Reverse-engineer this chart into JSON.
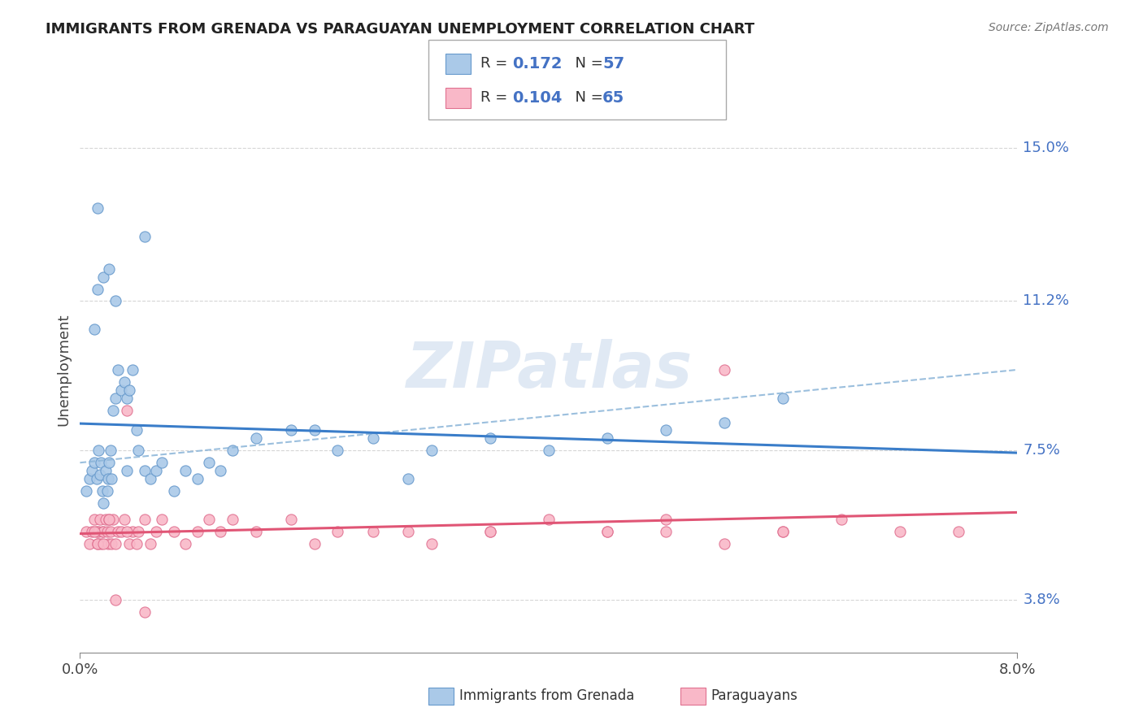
{
  "title": "IMMIGRANTS FROM GRENADA VS PARAGUAYAN UNEMPLOYMENT CORRELATION CHART",
  "source": "Source: ZipAtlas.com",
  "ylabel": "Unemployment",
  "x_range": [
    0.0,
    8.0
  ],
  "y_range": [
    2.5,
    16.5
  ],
  "y_ticks": [
    3.8,
    7.5,
    11.2,
    15.0
  ],
  "y_tick_labels": [
    "3.8%",
    "7.5%",
    "11.2%",
    "15.0%"
  ],
  "x_tick_labels": [
    "0.0%",
    "8.0%"
  ],
  "series1_color": "#aac9e8",
  "series1_edge": "#6699cc",
  "series2_color": "#f9b8c8",
  "series2_edge": "#e07090",
  "trend1_color": "#3a7dc9",
  "trend2_color": "#e05575",
  "dash_color": "#8ab4d8",
  "grid_color": "#cccccc",
  "blue_text_color": "#4472c4",
  "watermark": "ZIPatlas",
  "legend1_r": "0.172",
  "legend1_n": "57",
  "legend2_r": "0.104",
  "legend2_n": "65",
  "legend_label1": "Immigrants from Grenada",
  "legend_label2": "Paraguayans",
  "grenada_x": [
    0.05,
    0.08,
    0.1,
    0.12,
    0.14,
    0.15,
    0.16,
    0.17,
    0.18,
    0.19,
    0.2,
    0.22,
    0.23,
    0.24,
    0.25,
    0.26,
    0.27,
    0.28,
    0.3,
    0.32,
    0.35,
    0.38,
    0.4,
    0.42,
    0.45,
    0.48,
    0.5,
    0.55,
    0.6,
    0.65,
    0.7,
    0.8,
    0.9,
    1.0,
    1.1,
    1.2,
    1.3,
    1.5,
    1.8,
    2.0,
    2.2,
    2.5,
    2.8,
    3.0,
    3.5,
    4.0,
    4.5,
    5.0,
    5.5,
    6.0,
    0.12,
    0.15,
    0.2,
    0.25,
    0.3,
    0.4,
    0.55
  ],
  "grenada_y": [
    6.5,
    6.8,
    7.0,
    7.2,
    6.8,
    13.5,
    7.5,
    6.9,
    7.2,
    6.5,
    6.2,
    7.0,
    6.5,
    6.8,
    7.2,
    7.5,
    6.8,
    8.5,
    8.8,
    9.5,
    9.0,
    9.2,
    8.8,
    9.0,
    9.5,
    8.0,
    7.5,
    7.0,
    6.8,
    7.0,
    7.2,
    6.5,
    7.0,
    6.8,
    7.2,
    7.0,
    7.5,
    7.8,
    8.0,
    8.0,
    7.5,
    7.8,
    6.8,
    7.5,
    7.8,
    7.5,
    7.8,
    8.0,
    8.2,
    8.8,
    10.5,
    11.5,
    11.8,
    12.0,
    11.2,
    7.0,
    12.8
  ],
  "paraguay_x": [
    0.05,
    0.08,
    0.1,
    0.12,
    0.14,
    0.15,
    0.16,
    0.17,
    0.18,
    0.19,
    0.2,
    0.22,
    0.23,
    0.24,
    0.25,
    0.26,
    0.27,
    0.28,
    0.3,
    0.32,
    0.35,
    0.38,
    0.4,
    0.42,
    0.45,
    0.48,
    0.5,
    0.55,
    0.6,
    0.65,
    0.7,
    0.8,
    0.9,
    1.0,
    1.1,
    1.2,
    1.3,
    1.5,
    1.8,
    2.0,
    2.2,
    2.5,
    2.8,
    3.0,
    3.5,
    4.0,
    4.5,
    5.0,
    5.5,
    6.0,
    6.5,
    7.0,
    0.12,
    0.15,
    0.2,
    0.25,
    0.3,
    0.4,
    0.55,
    6.0,
    7.5,
    4.5,
    5.5,
    3.5,
    5.0
  ],
  "paraguay_y": [
    5.5,
    5.2,
    5.5,
    5.8,
    5.5,
    5.2,
    5.5,
    5.8,
    5.2,
    5.5,
    5.5,
    5.8,
    5.5,
    5.2,
    5.8,
    5.5,
    5.2,
    5.8,
    5.2,
    5.5,
    5.5,
    5.8,
    8.5,
    5.2,
    5.5,
    5.2,
    5.5,
    5.8,
    5.2,
    5.5,
    5.8,
    5.5,
    5.2,
    5.5,
    5.8,
    5.5,
    5.8,
    5.5,
    5.8,
    5.2,
    5.5,
    5.5,
    5.5,
    5.2,
    5.5,
    5.8,
    5.5,
    5.5,
    5.2,
    5.5,
    5.8,
    5.5,
    5.5,
    5.2,
    5.2,
    5.8,
    3.8,
    5.5,
    3.5,
    5.5,
    5.5,
    5.5,
    9.5,
    5.5,
    5.8
  ]
}
